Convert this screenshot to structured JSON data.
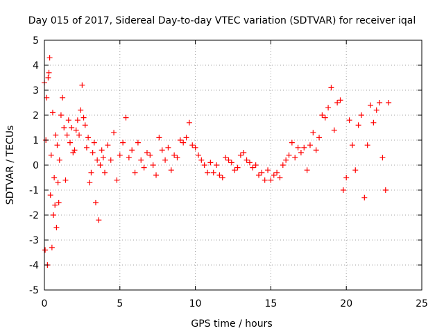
{
  "chart_data": {
    "type": "scatter",
    "title": "Day 015 of 2017, Sidereal Day-to-day VTEC variation (SDTVAR) for receiver iqal",
    "xlabel": "GPS time / hours",
    "ylabel": "SDTVAR / TECUs",
    "xlim": [
      0,
      25
    ],
    "ylim": [
      -5,
      5
    ],
    "xticks": [
      0,
      5,
      10,
      15,
      20,
      25
    ],
    "yticks": [
      -5,
      -4,
      -3,
      -2,
      -1,
      0,
      1,
      2,
      3,
      4,
      5
    ],
    "grid": true,
    "legend": "none",
    "marker": "+",
    "series": [
      {
        "name": "SDTVAR",
        "color": "#ff0000",
        "x": [
          0.0,
          0.05,
          0.1,
          0.15,
          0.2,
          0.25,
          0.3,
          0.35,
          0.4,
          0.45,
          0.5,
          0.55,
          0.6,
          0.65,
          0.7,
          0.75,
          0.8,
          0.85,
          0.9,
          0.95,
          1.0,
          1.1,
          1.2,
          1.3,
          1.4,
          1.5,
          1.6,
          1.7,
          1.8,
          1.9,
          2.0,
          2.1,
          2.2,
          2.3,
          2.4,
          2.5,
          2.6,
          2.7,
          2.8,
          2.9,
          3.0,
          3.1,
          3.2,
          3.3,
          3.4,
          3.5,
          3.6,
          3.7,
          3.8,
          3.9,
          4.0,
          4.2,
          4.4,
          4.6,
          4.8,
          5.0,
          5.2,
          5.4,
          5.6,
          5.8,
          6.0,
          6.2,
          6.4,
          6.6,
          6.8,
          7.0,
          7.2,
          7.4,
          7.6,
          7.8,
          8.0,
          8.2,
          8.4,
          8.6,
          8.8,
          9.0,
          9.2,
          9.4,
          9.6,
          9.8,
          10.0,
          10.2,
          10.4,
          10.6,
          10.8,
          11.0,
          11.2,
          11.4,
          11.6,
          11.8,
          12.0,
          12.2,
          12.4,
          12.6,
          12.8,
          13.0,
          13.2,
          13.4,
          13.6,
          13.8,
          14.0,
          14.2,
          14.4,
          14.6,
          14.8,
          15.0,
          15.2,
          15.4,
          15.6,
          15.8,
          16.0,
          16.2,
          16.4,
          16.6,
          16.8,
          17.0,
          17.2,
          17.4,
          17.6,
          17.8,
          18.0,
          18.2,
          18.4,
          18.6,
          18.8,
          19.0,
          19.2,
          19.4,
          19.6,
          19.8,
          20.0,
          20.2,
          20.4,
          20.6,
          20.8,
          21.0,
          21.2,
          21.4,
          21.6,
          21.8,
          22.0,
          22.2,
          22.4,
          22.6,
          22.8
        ],
        "y": [
          3.3,
          -3.4,
          1.0,
          2.7,
          -4.0,
          3.5,
          3.7,
          4.3,
          -1.2,
          0.4,
          -3.3,
          2.1,
          -2.0,
          -0.5,
          -1.6,
          1.2,
          -2.5,
          0.8,
          -0.7,
          -1.5,
          0.2,
          2.0,
          2.7,
          1.5,
          -0.6,
          1.2,
          1.8,
          0.9,
          1.5,
          0.5,
          0.6,
          1.4,
          1.8,
          1.2,
          2.2,
          3.2,
          1.9,
          1.6,
          0.7,
          1.1,
          -0.7,
          -0.3,
          0.5,
          0.9,
          -1.5,
          0.2,
          -2.2,
          0.0,
          0.6,
          0.3,
          -0.3,
          0.8,
          0.2,
          1.3,
          -0.6,
          0.4,
          0.9,
          1.9,
          0.3,
          0.6,
          -0.3,
          0.9,
          0.2,
          -0.1,
          0.5,
          0.4,
          0.0,
          -0.4,
          1.1,
          0.6,
          0.2,
          0.7,
          -0.2,
          0.4,
          0.3,
          1.0,
          0.9,
          1.1,
          1.7,
          0.8,
          0.7,
          0.4,
          0.2,
          0.0,
          -0.3,
          0.1,
          -0.3,
          0.0,
          -0.4,
          -0.5,
          0.3,
          0.2,
          0.1,
          -0.2,
          -0.1,
          0.4,
          0.5,
          0.2,
          0.1,
          -0.1,
          0.0,
          -0.4,
          -0.3,
          -0.6,
          -0.2,
          -0.6,
          -0.4,
          -0.3,
          -0.5,
          0.0,
          0.2,
          0.4,
          0.9,
          0.3,
          0.7,
          0.5,
          0.7,
          -0.2,
          0.8,
          1.3,
          0.6,
          1.1,
          2.0,
          1.9,
          2.3,
          3.1,
          1.4,
          2.5,
          2.6,
          -1.0,
          -0.5,
          1.8,
          0.8,
          -0.2,
          1.6,
          2.0,
          -1.3,
          0.8,
          2.4,
          1.7,
          2.2,
          2.5,
          0.3,
          -1.0,
          2.5
        ]
      }
    ]
  }
}
